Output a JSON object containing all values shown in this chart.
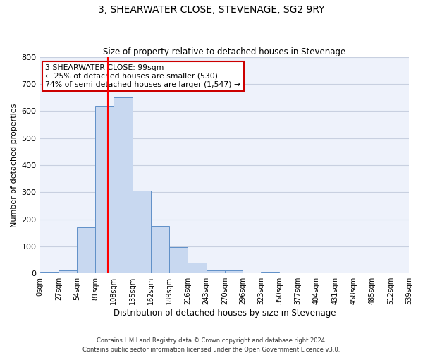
{
  "title": "3, SHEARWATER CLOSE, STEVENAGE, SG2 9RY",
  "subtitle": "Size of property relative to detached houses in Stevenage",
  "xlabel": "Distribution of detached houses by size in Stevenage",
  "ylabel": "Number of detached properties",
  "bar_color": "#c8d8f0",
  "bar_edge_color": "#6090c8",
  "bin_edges": [
    0,
    27,
    54,
    81,
    108,
    135,
    162,
    189,
    216,
    243,
    270,
    296,
    323,
    350,
    377,
    404,
    431,
    458,
    485,
    512,
    539
  ],
  "bar_heights": [
    5,
    10,
    170,
    620,
    650,
    305,
    175,
    98,
    40,
    12,
    10,
    0,
    5,
    0,
    3,
    0,
    0,
    0,
    0,
    0
  ],
  "tick_labels": [
    "0sqm",
    "27sqm",
    "54sqm",
    "81sqm",
    "108sqm",
    "135sqm",
    "162sqm",
    "189sqm",
    "216sqm",
    "243sqm",
    "270sqm",
    "296sqm",
    "323sqm",
    "350sqm",
    "377sqm",
    "404sqm",
    "431sqm",
    "458sqm",
    "485sqm",
    "512sqm",
    "539sqm"
  ],
  "ylim": [
    0,
    800
  ],
  "yticks": [
    0,
    100,
    200,
    300,
    400,
    500,
    600,
    700,
    800
  ],
  "red_line_x": 99,
  "annotation_line1": "3 SHEARWATER CLOSE: 99sqm",
  "annotation_line2": "← 25% of detached houses are smaller (530)",
  "annotation_line3": "74% of semi-detached houses are larger (1,547) →",
  "box_facecolor": "white",
  "box_edgecolor": "#cc0000",
  "footnote1": "Contains HM Land Registry data © Crown copyright and database right 2024.",
  "footnote2": "Contains public sector information licensed under the Open Government Licence v3.0.",
  "bg_color": "#eef2fb",
  "grid_color": "#c8d0e0"
}
